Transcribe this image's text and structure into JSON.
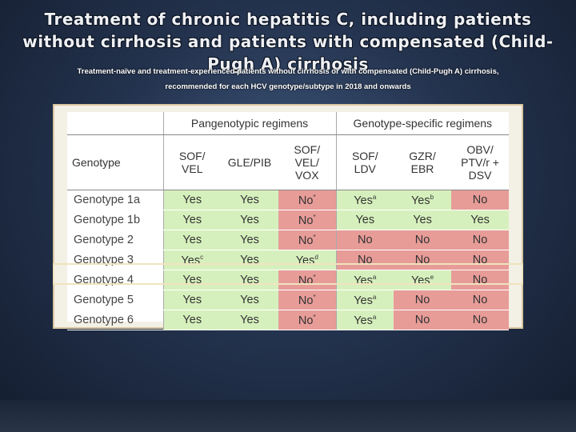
{
  "slide": {
    "title_line1": "Treatment of chronic hepatitis C, including patients",
    "title_line2": "without cirrhosis and patients with compensated (Child-",
    "title_line3": "Pugh A) cirrhosis",
    "subtitle_line1": "Treatment-naïve and treatment-experienced patients without cirrhosis or with compensated (Child-Pugh A) cirrhosis,",
    "subtitle_line2": "recommended for each HCV genotype/subtype in 2018 and onwards"
  },
  "table": {
    "groups": {
      "pangenotypic": "Pangenotypic regimens",
      "specific": "Genotype-specific regimens"
    },
    "genotype_header": "Genotype",
    "columns": [
      {
        "l1": "SOF/",
        "l2": "VEL",
        "l3": ""
      },
      {
        "l1": "GLE/PIB",
        "l2": "",
        "l3": ""
      },
      {
        "l1": "SOF/",
        "l2": "VEL/",
        "l3": "VOX"
      },
      {
        "l1": "SOF/",
        "l2": "LDV",
        "l3": ""
      },
      {
        "l1": "GZR/",
        "l2": "EBR",
        "l3": ""
      },
      {
        "l1": "OBV/",
        "l2": "PTV/r +",
        "l3": "DSV"
      }
    ],
    "rows": [
      {
        "name": "Genotype 1a",
        "cells": [
          {
            "t": "Yes",
            "s": ""
          },
          {
            "t": "Yes",
            "s": ""
          },
          {
            "t": "No",
            "s": "*"
          },
          {
            "t": "Yes",
            "s": "a"
          },
          {
            "t": "Yes",
            "s": "b"
          },
          {
            "t": "No",
            "s": ""
          }
        ]
      },
      {
        "name": "Genotype 1b",
        "cells": [
          {
            "t": "Yes",
            "s": ""
          },
          {
            "t": "Yes",
            "s": ""
          },
          {
            "t": "No",
            "s": "*"
          },
          {
            "t": "Yes",
            "s": ""
          },
          {
            "t": "Yes",
            "s": ""
          },
          {
            "t": "Yes",
            "s": ""
          }
        ]
      },
      {
        "name": "Genotype 2",
        "cells": [
          {
            "t": "Yes",
            "s": ""
          },
          {
            "t": "Yes",
            "s": ""
          },
          {
            "t": "No",
            "s": "*"
          },
          {
            "t": "No",
            "s": ""
          },
          {
            "t": "No",
            "s": ""
          },
          {
            "t": "No",
            "s": ""
          }
        ]
      },
      {
        "name": "Genotype 3",
        "cells": [
          {
            "t": "Yes",
            "s": "c"
          },
          {
            "t": "Yes",
            "s": ""
          },
          {
            "t": "Yes",
            "s": "d"
          },
          {
            "t": "No",
            "s": ""
          },
          {
            "t": "No",
            "s": ""
          },
          {
            "t": "No",
            "s": ""
          }
        ]
      },
      {
        "name": "Genotype 4",
        "cells": [
          {
            "t": "Yes",
            "s": ""
          },
          {
            "t": "Yes",
            "s": ""
          },
          {
            "t": "No",
            "s": "*"
          },
          {
            "t": "Yes",
            "s": "a"
          },
          {
            "t": "Yes",
            "s": "e"
          },
          {
            "t": "No",
            "s": ""
          }
        ]
      },
      {
        "name": "Genotype 5",
        "cells": [
          {
            "t": "Yes",
            "s": ""
          },
          {
            "t": "Yes",
            "s": ""
          },
          {
            "t": "No",
            "s": "*"
          },
          {
            "t": "Yes",
            "s": "a"
          },
          {
            "t": "No",
            "s": ""
          },
          {
            "t": "No",
            "s": ""
          }
        ]
      },
      {
        "name": "Genotype 6",
        "cells": [
          {
            "t": "Yes",
            "s": ""
          },
          {
            "t": "Yes",
            "s": ""
          },
          {
            "t": "No",
            "s": "*"
          },
          {
            "t": "Yes",
            "s": "a"
          },
          {
            "t": "No",
            "s": ""
          },
          {
            "t": "No",
            "s": ""
          }
        ]
      }
    ]
  },
  "colors": {
    "yes": "#d6f0bd",
    "no": "#e79c98"
  }
}
